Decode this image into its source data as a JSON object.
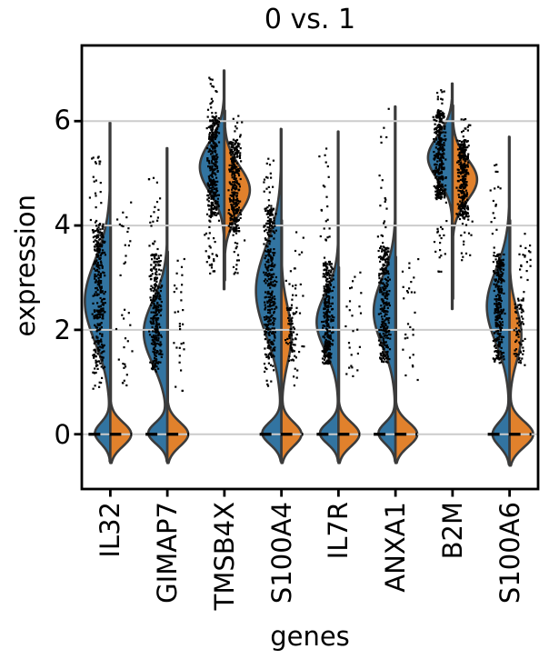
{
  "chart_data": {
    "type": "violin",
    "title": "0 vs. 1",
    "xlabel": "genes",
    "ylabel": "expression",
    "yticks": [
      0,
      2,
      4,
      6
    ],
    "ylim": [
      -1.05,
      7.45
    ],
    "grid": true,
    "legend_position": "none",
    "categories": [
      "IL32",
      "GIMAP7",
      "TMSB4X",
      "S100A4",
      "IL7R",
      "ANXA1",
      "B2M",
      "S100A6"
    ],
    "groups": [
      {
        "name": "0",
        "color": "#3274a1",
        "side": "left"
      },
      {
        "name": "1",
        "color": "#e1812c",
        "side": "right"
      }
    ],
    "style": {
      "edge": "#3b3b3b",
      "grid": "#cccccc",
      "point": "#000000",
      "spine": "#000000",
      "background": "#ffffff"
    },
    "violins": [
      {
        "gene": "IL32",
        "zero_dash": true,
        "left": {
          "components": [
            {
              "m": 2.55,
              "s": 0.78,
              "w": 1
            },
            {
              "m": 0.02,
              "s": 0.2,
              "w": 0.6
            }
          ],
          "range": [
            -0.52,
            5.97
          ],
          "maxw": 28
        },
        "right": {
          "components": [
            {
              "m": 0.0,
              "s": 0.23,
              "w": 1
            }
          ],
          "range": [
            -0.55,
            4.0
          ],
          "maxw": 23
        },
        "points": [
          {
            "side": "left",
            "y": [
              1.25,
              4.05
            ],
            "n": 300,
            "x": [
              -20,
              -5
            ]
          },
          {
            "side": "left",
            "y": [
              4.05,
              5.4
            ],
            "n": 22,
            "x": [
              -24,
              -6
            ]
          },
          {
            "side": "left",
            "y": [
              0.85,
              1.25
            ],
            "n": 10,
            "x": [
              -22,
              -8
            ]
          },
          {
            "side": "right",
            "y": [
              0.9,
              4.5
            ],
            "n": 36,
            "x": [
              5,
              26
            ]
          }
        ]
      },
      {
        "gene": "GIMAP7",
        "zero_dash": true,
        "left": {
          "components": [
            {
              "m": 1.95,
              "s": 0.62,
              "w": 1
            },
            {
              "m": 0.02,
              "s": 0.2,
              "w": 0.8
            }
          ],
          "range": [
            -0.52,
            5.48
          ],
          "maxw": 26
        },
        "right": {
          "components": [
            {
              "m": 0.0,
              "s": 0.23,
              "w": 1
            }
          ],
          "range": [
            -0.55,
            3.5
          ],
          "maxw": 23
        },
        "points": [
          {
            "side": "left",
            "y": [
              1.2,
              3.45
            ],
            "n": 280,
            "x": [
              -20,
              -5
            ]
          },
          {
            "side": "left",
            "y": [
              3.45,
              5.0
            ],
            "n": 20,
            "x": [
              -22,
              -6
            ]
          },
          {
            "side": "right",
            "y": [
              0.8,
              3.6
            ],
            "n": 30,
            "x": [
              5,
              24
            ]
          }
        ]
      },
      {
        "gene": "TMSB4X",
        "zero_dash": false,
        "left": {
          "components": [
            {
              "m": 5.12,
              "s": 0.48,
              "w": 1
            }
          ],
          "range": [
            2.78,
            6.97
          ],
          "maxw": 27
        },
        "right": {
          "components": [
            {
              "m": 4.68,
              "s": 0.45,
              "w": 1
            }
          ],
          "range": [
            2.95,
            6.2
          ],
          "maxw": 28
        },
        "points": [
          {
            "side": "left",
            "y": [
              4.15,
              6.1
            ],
            "n": 320,
            "x": [
              -20,
              -5
            ]
          },
          {
            "side": "left",
            "y": [
              6.1,
              6.88
            ],
            "n": 16,
            "x": [
              -20,
              -6
            ]
          },
          {
            "side": "left",
            "y": [
              2.95,
              4.15
            ],
            "n": 30,
            "x": [
              -22,
              -5
            ]
          },
          {
            "side": "right",
            "y": [
              3.85,
              5.6
            ],
            "n": 300,
            "x": [
              4,
              19
            ]
          },
          {
            "side": "right",
            "y": [
              5.6,
              6.1
            ],
            "n": 12,
            "x": [
              5,
              22
            ]
          },
          {
            "side": "right",
            "y": [
              3.0,
              3.85
            ],
            "n": 16,
            "x": [
              5,
              24
            ]
          }
        ]
      },
      {
        "gene": "S100A4",
        "zero_dash": true,
        "left": {
          "components": [
            {
              "m": 2.75,
              "s": 0.85,
              "w": 1
            },
            {
              "m": 0.02,
              "s": 0.21,
              "w": 0.75
            }
          ],
          "range": [
            -0.52,
            5.85
          ],
          "maxw": 28
        },
        "right": {
          "components": [
            {
              "m": 0.0,
              "s": 0.23,
              "w": 1
            },
            {
              "m": 1.9,
              "s": 0.55,
              "w": 0.5
            }
          ],
          "range": [
            -0.55,
            4.1
          ],
          "maxw": 22
        },
        "points": [
          {
            "side": "left",
            "y": [
              1.45,
              4.35
            ],
            "n": 330,
            "x": [
              -20,
              -5
            ]
          },
          {
            "side": "left",
            "y": [
              4.35,
              5.3
            ],
            "n": 18,
            "x": [
              -23,
              -6
            ]
          },
          {
            "side": "left",
            "y": [
              0.9,
              1.45
            ],
            "n": 12,
            "x": [
              -22,
              -8
            ]
          },
          {
            "side": "right",
            "y": [
              1.4,
              2.6
            ],
            "n": 60,
            "x": [
              4,
              18
            ]
          },
          {
            "side": "right",
            "y": [
              0.85,
              4.0
            ],
            "n": 34,
            "x": [
              5,
              26
            ]
          }
        ]
      },
      {
        "gene": "IL7R",
        "zero_dash": true,
        "left": {
          "components": [
            {
              "m": 2.15,
              "s": 0.55,
              "w": 1
            },
            {
              "m": 0.02,
              "s": 0.2,
              "w": 0.85
            }
          ],
          "range": [
            -0.52,
            5.8
          ],
          "maxw": 24
        },
        "right": {
          "components": [
            {
              "m": 0.0,
              "s": 0.23,
              "w": 1
            }
          ],
          "range": [
            -0.55,
            3.2
          ],
          "maxw": 23
        },
        "points": [
          {
            "side": "left",
            "y": [
              1.35,
              3.3
            ],
            "n": 280,
            "x": [
              -19,
              -5
            ]
          },
          {
            "side": "left",
            "y": [
              3.3,
              5.65
            ],
            "n": 24,
            "x": [
              -22,
              -6
            ]
          },
          {
            "side": "right",
            "y": [
              0.9,
              3.1
            ],
            "n": 26,
            "x": [
              5,
              26
            ]
          }
        ]
      },
      {
        "gene": "ANXA1",
        "zero_dash": true,
        "left": {
          "components": [
            {
              "m": 2.35,
              "s": 0.65,
              "w": 1
            },
            {
              "m": 0.02,
              "s": 0.2,
              "w": 0.78
            }
          ],
          "range": [
            -0.52,
            6.28
          ],
          "maxw": 24
        },
        "right": {
          "components": [
            {
              "m": 0.0,
              "s": 0.23,
              "w": 1
            }
          ],
          "range": [
            -0.55,
            3.4
          ],
          "maxw": 24
        },
        "points": [
          {
            "side": "left",
            "y": [
              1.35,
              3.6
            ],
            "n": 290,
            "x": [
              -19,
              -5
            ]
          },
          {
            "side": "left",
            "y": [
              3.6,
              6.25
            ],
            "n": 20,
            "x": [
              -22,
              -6
            ]
          },
          {
            "side": "right",
            "y": [
              1.0,
              3.4
            ],
            "n": 28,
            "x": [
              5,
              26
            ]
          }
        ]
      },
      {
        "gene": "B2M",
        "zero_dash": false,
        "left": {
          "components": [
            {
              "m": 5.3,
              "s": 0.42,
              "w": 1
            }
          ],
          "range": [
            2.4,
            6.72
          ],
          "maxw": 27
        },
        "right": {
          "components": [
            {
              "m": 4.88,
              "s": 0.4,
              "w": 1
            }
          ],
          "range": [
            2.6,
            6.3
          ],
          "maxw": 27
        },
        "points": [
          {
            "side": "left",
            "y": [
              4.5,
              6.2
            ],
            "n": 330,
            "x": [
              -22,
              -6
            ]
          },
          {
            "side": "left",
            "y": [
              6.2,
              6.62
            ],
            "n": 10,
            "x": [
              -20,
              -6
            ]
          },
          {
            "side": "left",
            "y": [
              3.1,
              4.5
            ],
            "n": 20,
            "x": [
              -23,
              -6
            ]
          },
          {
            "side": "right",
            "y": [
              4.1,
              5.65
            ],
            "n": 300,
            "x": [
              4,
              19
            ]
          },
          {
            "side": "right",
            "y": [
              5.65,
              6.05
            ],
            "n": 12,
            "x": [
              5,
              22
            ]
          },
          {
            "side": "right",
            "y": [
              3.3,
              4.1
            ],
            "n": 14,
            "x": [
              5,
              24
            ]
          }
        ]
      },
      {
        "gene": "S100A6",
        "zero_dash": true,
        "left": {
          "components": [
            {
              "m": 2.45,
              "s": 0.7,
              "w": 1
            },
            {
              "m": 0.0,
              "s": 0.23,
              "w": 0.75
            }
          ],
          "range": [
            -0.58,
            5.7
          ],
          "maxw": 25
        },
        "right": {
          "components": [
            {
              "m": 0.0,
              "s": 0.25,
              "w": 1
            },
            {
              "m": 1.9,
              "s": 0.5,
              "w": 0.5
            }
          ],
          "range": [
            -0.6,
            4.1
          ],
          "maxw": 26
        },
        "points": [
          {
            "side": "left",
            "y": [
              1.35,
              3.45
            ],
            "n": 280,
            "x": [
              -19,
              -5
            ]
          },
          {
            "side": "left",
            "y": [
              3.45,
              5.2
            ],
            "n": 18,
            "x": [
              -22,
              -6
            ]
          },
          {
            "side": "right",
            "y": [
              1.3,
              2.6
            ],
            "n": 70,
            "x": [
              4,
              18
            ]
          },
          {
            "side": "right",
            "y": [
              2.6,
              3.9
            ],
            "n": 20,
            "x": [
              5,
              24
            ]
          }
        ]
      }
    ]
  }
}
